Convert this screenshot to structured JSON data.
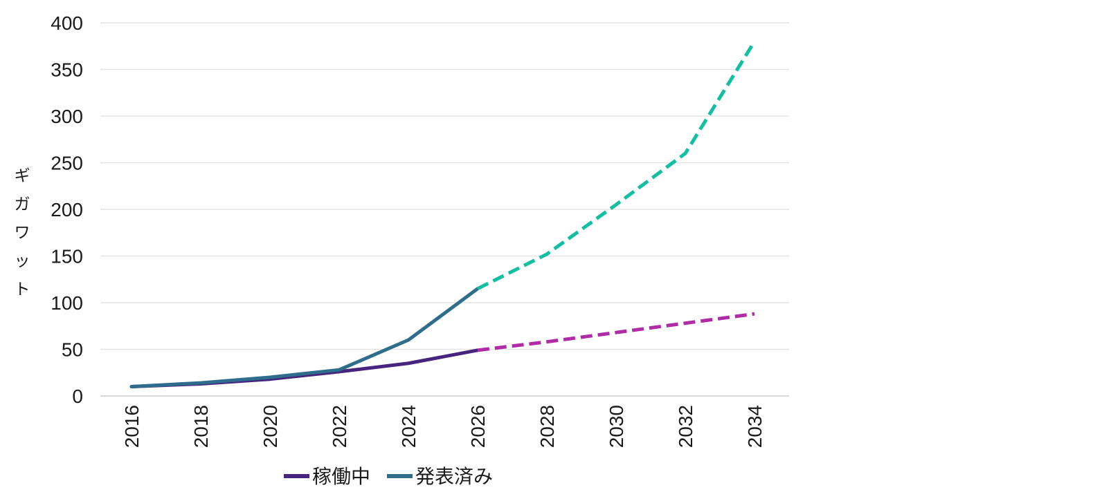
{
  "chart_data": {
    "type": "line",
    "title": "",
    "xlabel": "",
    "ylabel": "ギガワット",
    "unit": "GW",
    "xlim": [
      2016,
      2034
    ],
    "ylim": [
      0,
      400
    ],
    "x_ticks": [
      2016,
      2018,
      2020,
      2022,
      2024,
      2026,
      2028,
      2030,
      2032,
      2034
    ],
    "y_ticks": [
      0,
      50,
      100,
      150,
      200,
      250,
      300,
      350,
      400
    ],
    "grid": "horizontal",
    "legend_position": "bottom",
    "series": [
      {
        "id": "operating-actual",
        "style": "solid",
        "color": "#46257f",
        "x": [
          2016,
          2018,
          2020,
          2022,
          2024,
          2026
        ],
        "values": [
          10,
          13,
          18,
          26,
          35,
          49
        ]
      },
      {
        "id": "announced-actual",
        "style": "solid",
        "color": "#2e6d8c",
        "x": [
          2016,
          2018,
          2020,
          2022,
          2024,
          2026
        ],
        "values": [
          10,
          14,
          20,
          28,
          60,
          115
        ]
      },
      {
        "id": "operating-projection",
        "style": "dashed",
        "color": "#b02ba6",
        "x": [
          2026,
          2028,
          2030,
          2032,
          2034
        ],
        "values": [
          49,
          58,
          68,
          78,
          88
        ]
      },
      {
        "id": "announced-projection",
        "style": "dashed",
        "color": "#12bfa2",
        "x": [
          2026,
          2028,
          2030,
          2032,
          2034
        ],
        "values": [
          115,
          152,
          205,
          260,
          380
        ]
      }
    ],
    "legend": [
      {
        "id": "operating",
        "label": "稼働中",
        "color": "#46257f"
      },
      {
        "id": "announced",
        "label": "発表済み",
        "color": "#2e6d8c"
      }
    ]
  },
  "colors": {
    "background": "#ffffff",
    "gridline": "#e4e4e4",
    "axis": "#cccccc",
    "tick_text": "#1a1a1a"
  }
}
